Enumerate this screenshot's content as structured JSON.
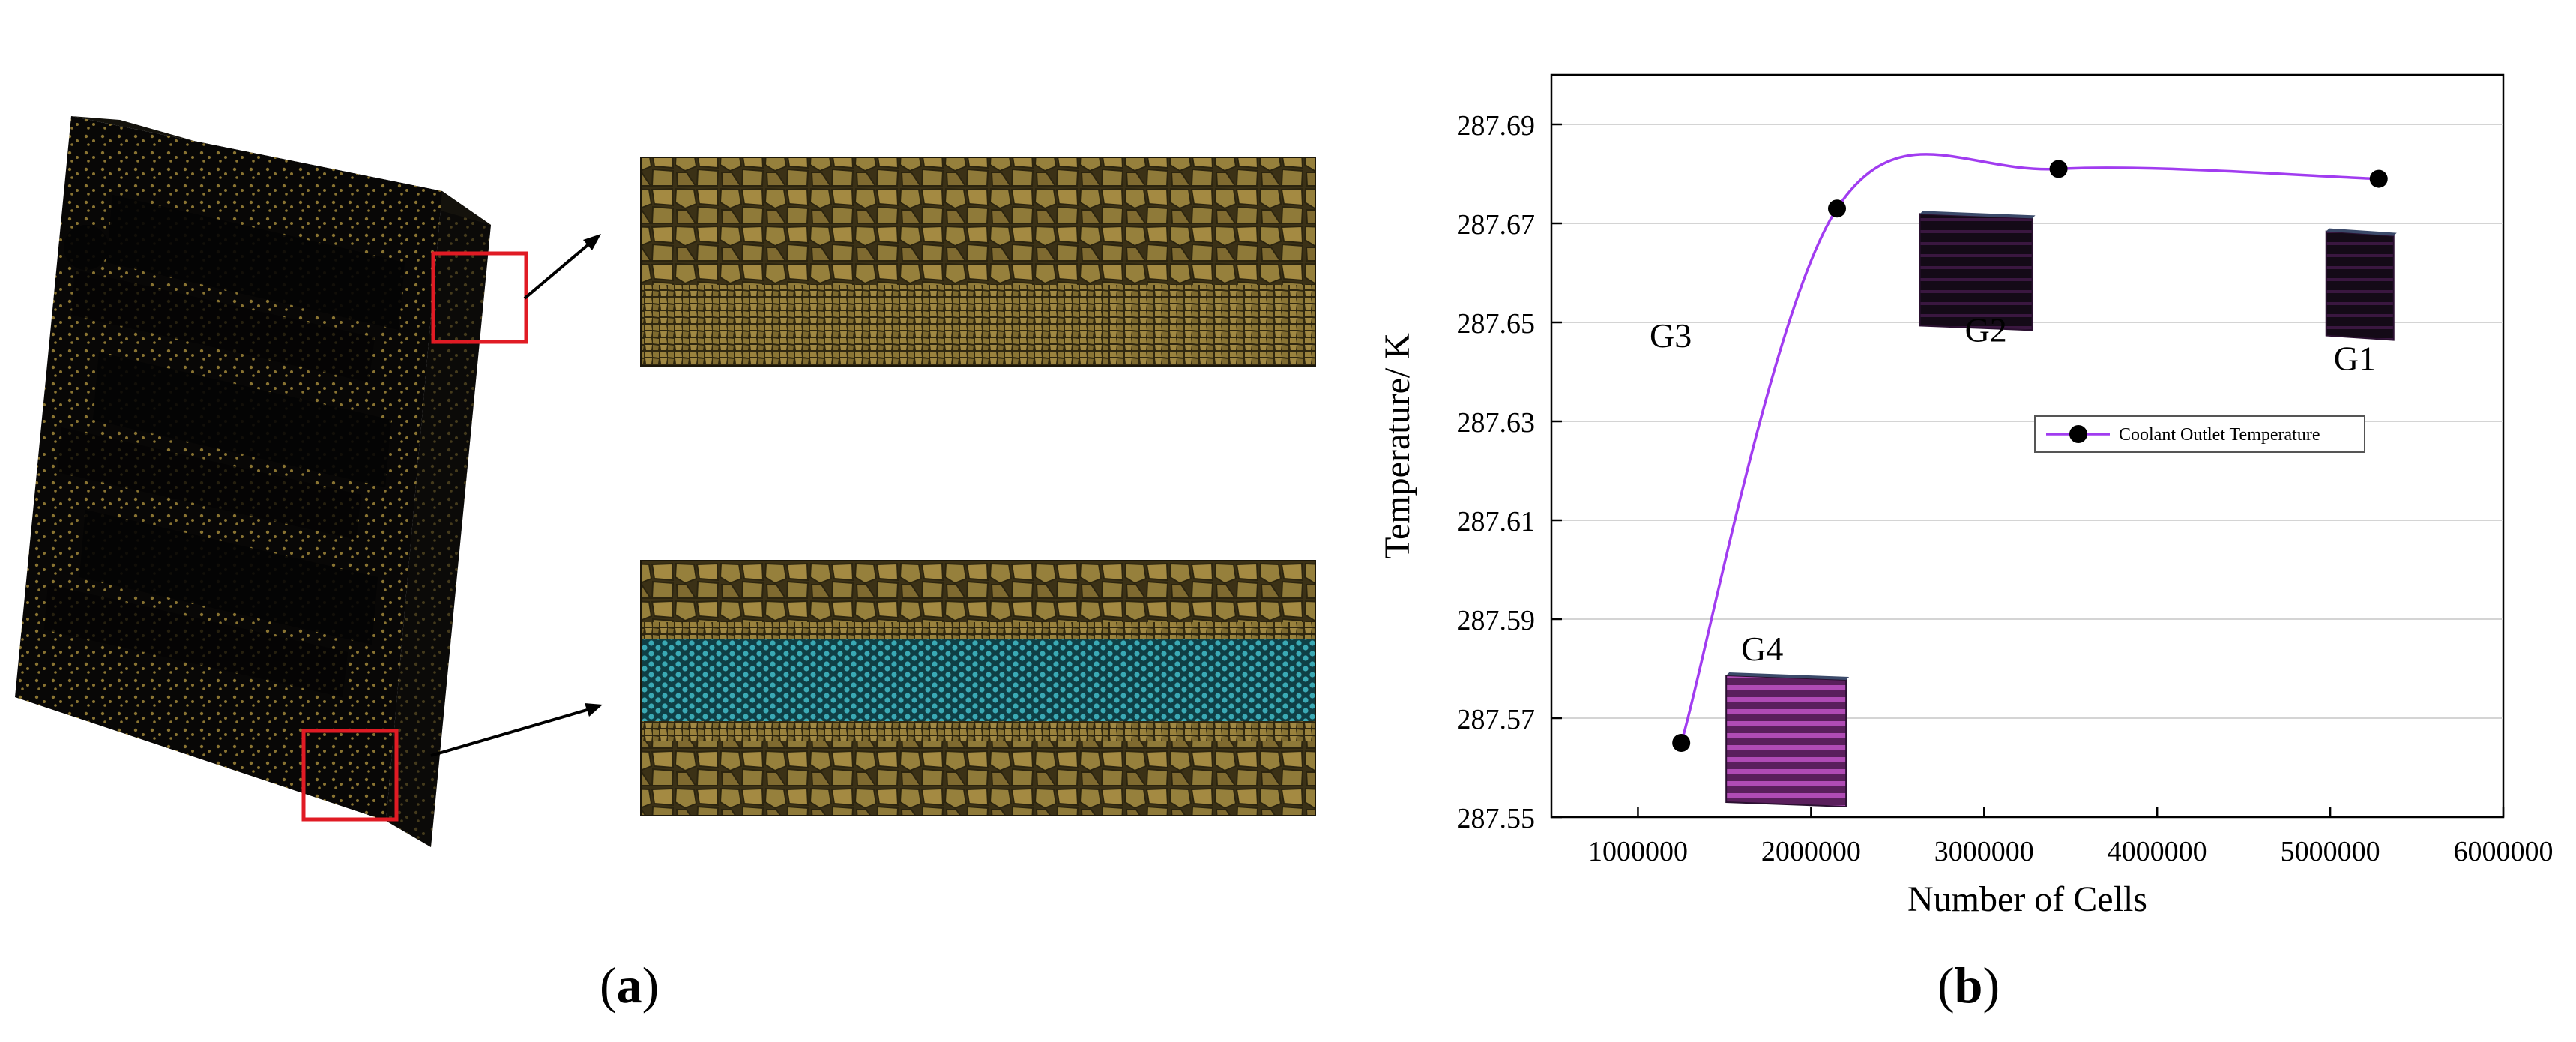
{
  "panels": {
    "a_label": "a",
    "b_label": "b"
  },
  "colors": {
    "mesh": "#8a7432",
    "mesh_dark": "#050505",
    "mesh_fluid": "#3aa9b4",
    "highlight_box": "#e01b24",
    "series": "#a13cf0",
    "marker": "#000000",
    "thumbnail_bright": "#7a2a7a",
    "thumbnail_dark": "#1a0d1e"
  },
  "mesh_icons": [
    "mesh-plate-icon",
    "polyhedral-mesh-detail-icon",
    "fluid-channel-mesh-detail-icon",
    "cooling-plate-thumbnail-icon"
  ],
  "chart_data": {
    "type": "line",
    "title": "",
    "xlabel": "Number of Cells",
    "ylabel": "Temperature/ K",
    "xlim": [
      500000,
      6000000
    ],
    "ylim": [
      287.55,
      287.7
    ],
    "x_ticks": [
      1000000,
      2000000,
      3000000,
      4000000,
      5000000,
      6000000
    ],
    "x_tick_labels": [
      "1000000",
      "2000000",
      "3000000",
      "4000000",
      "5000000",
      "6000000"
    ],
    "y_ticks": [
      287.55,
      287.57,
      287.59,
      287.61,
      287.63,
      287.65,
      287.67,
      287.69
    ],
    "y_tick_labels": [
      "287.55",
      "287.57",
      "287.59",
      "287.61",
      "287.63",
      "287.65",
      "287.67",
      "287.69"
    ],
    "grid": true,
    "legend_position": "middle-right",
    "series": [
      {
        "name": "Coolant Outlet Temperature",
        "x": [
          1250000,
          2150000,
          3430000,
          5280000
        ],
        "y": [
          287.565,
          287.673,
          287.681,
          287.679
        ],
        "smooth": true
      }
    ],
    "annotations": [
      {
        "text": "G4",
        "x": 1250000,
        "y": 287.565
      },
      {
        "text": "G3",
        "x": 2150000,
        "y": 287.673
      },
      {
        "text": "G2",
        "x": 3430000,
        "y": 287.681
      },
      {
        "text": "G1",
        "x": 5280000,
        "y": 287.679
      }
    ]
  }
}
